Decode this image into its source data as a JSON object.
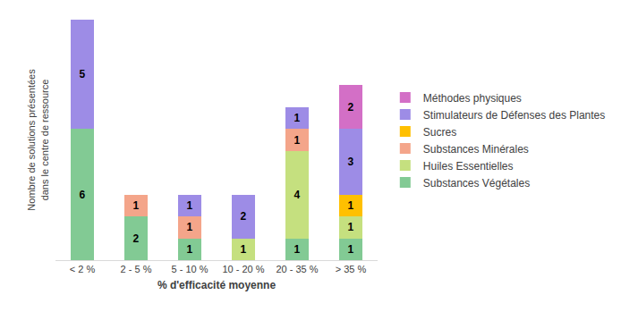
{
  "chart_data": {
    "type": "bar",
    "stacked": true,
    "data_labels": true,
    "grid": false,
    "legend": "right",
    "tick_labels": "x",
    "x_label": "% d'efficacité moyenne",
    "y_label": "Nombre de solutions présentées dans le centre de ressource",
    "categories": [
      "< 2 %",
      "2 - 5 %",
      "5 - 10 %",
      "10 - 20 %",
      "20 - 35 %",
      "> 35 %"
    ],
    "ylim": [
      0,
      11
    ],
    "series": [
      {
        "name": "Substances Végétales",
        "color": "#82ca94",
        "values": [
          6,
          2,
          1,
          null,
          1,
          1
        ]
      },
      {
        "name": "Huiles Essentielles",
        "color": "#c5e07f",
        "values": [
          null,
          null,
          null,
          1,
          4,
          1
        ]
      },
      {
        "name": "Substances Minérales",
        "color": "#f4a58a",
        "values": [
          null,
          1,
          1,
          null,
          1,
          null
        ]
      },
      {
        "name": "Sucres",
        "color": "#ffc000",
        "values": [
          null,
          null,
          null,
          null,
          null,
          1
        ]
      },
      {
        "name": "Stimulateurs de Défenses des Plantes",
        "color": "#9d8ce6",
        "values": [
          5,
          null,
          1,
          2,
          1,
          3
        ]
      },
      {
        "name": "Méthodes physiques",
        "color": "#d36fc6",
        "values": [
          null,
          null,
          null,
          null,
          null,
          2
        ]
      }
    ]
  }
}
